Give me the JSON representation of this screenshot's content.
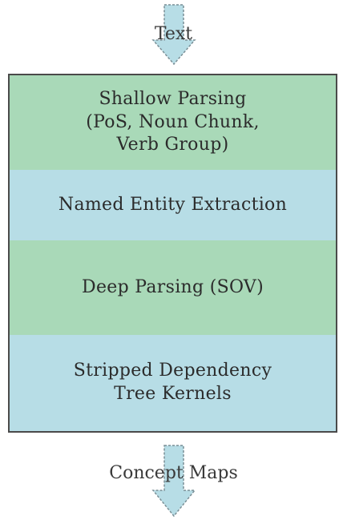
{
  "input_label": "Text",
  "output_label": "Concept Maps",
  "layers": [
    {
      "lines": [
        "Shallow Parsing",
        "(PoS, Noun Chunk,",
        "Verb Group)"
      ]
    },
    {
      "lines": [
        "Named Entity Extraction"
      ]
    },
    {
      "lines": [
        "Deep Parsing (SOV)"
      ]
    },
    {
      "lines": [
        "Stripped Dependency",
        "Tree Kernels"
      ]
    }
  ],
  "colors": {
    "green_layer": "#a9d9b8",
    "blue_layer": "#b7dde6",
    "arrow_fill": "#b7dde6",
    "border": "#4a4a4a"
  }
}
